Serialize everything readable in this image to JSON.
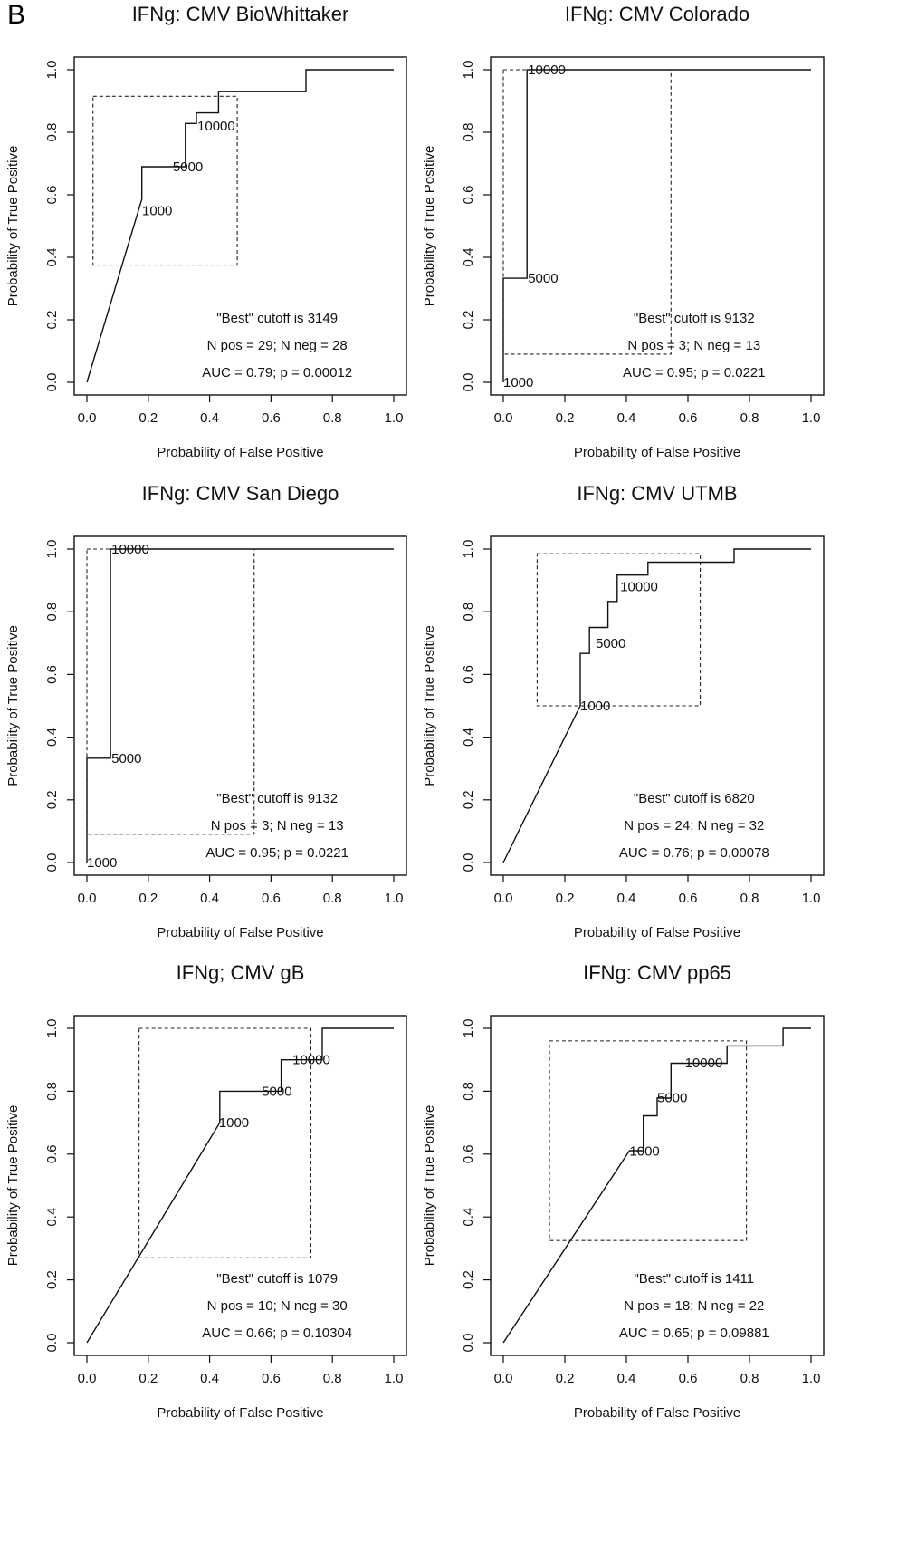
{
  "panel_label": "B",
  "chart_data": [
    {
      "type": "line",
      "title": "IFNg: CMV BioWhittaker",
      "xlabel": "Probability of False Positive",
      "ylabel": "Probability of True Positive",
      "xlim": [
        0,
        1
      ],
      "ylim": [
        0,
        1
      ],
      "xticks": [
        "0.0",
        "0.2",
        "0.4",
        "0.6",
        "0.8",
        "1.0"
      ],
      "yticks": [
        "0.0",
        "0.2",
        "0.4",
        "0.6",
        "0.8",
        "1.0"
      ],
      "roc": {
        "x": [
          0,
          0.179,
          0.179,
          0.321,
          0.321,
          0.357,
          0.357,
          0.429,
          0.429,
          0.714,
          0.714,
          1.0
        ],
        "y": [
          0,
          0.586,
          0.69,
          0.69,
          0.828,
          0.828,
          0.862,
          0.862,
          0.931,
          0.931,
          1.0,
          1.0
        ]
      },
      "best_box": {
        "x": [
          0.02,
          0.49
        ],
        "y": [
          0.375,
          0.915
        ]
      },
      "cutoff_labels": [
        {
          "text": "1000",
          "x": 0.18,
          "y": 0.55
        },
        {
          "text": "5000",
          "x": 0.28,
          "y": 0.69
        },
        {
          "text": "10000",
          "x": 0.36,
          "y": 0.82
        }
      ],
      "annotations": [
        "\"Best\" cutoff is 3149",
        "N pos = 29; N neg = 28",
        "AUC = 0.79; p = 0.00012"
      ]
    },
    {
      "type": "line",
      "title": "IFNg: CMV Colorado",
      "xlabel": "Probability of False Positive",
      "ylabel": "Probability of True Positive",
      "xlim": [
        0,
        1
      ],
      "ylim": [
        0,
        1
      ],
      "xticks": [
        "0.0",
        "0.2",
        "0.4",
        "0.6",
        "0.8",
        "1.0"
      ],
      "yticks": [
        "0.0",
        "0.2",
        "0.4",
        "0.6",
        "0.8",
        "1.0"
      ],
      "roc": {
        "x": [
          0,
          0,
          0.077,
          0.077,
          1.0
        ],
        "y": [
          0,
          0.333,
          0.333,
          1.0,
          1.0
        ]
      },
      "best_box": {
        "x": [
          0.0,
          0.545
        ],
        "y": [
          0.09,
          1.0
        ]
      },
      "cutoff_labels": [
        {
          "text": "1000",
          "x": 0.0,
          "y": 0.0
        },
        {
          "text": "5000",
          "x": 0.08,
          "y": 0.333
        },
        {
          "text": "10000",
          "x": 0.08,
          "y": 1.0
        }
      ],
      "annotations": [
        "\"Best\" cutoff is 9132",
        "N pos = 3; N neg = 13",
        "AUC = 0.95; p = 0.0221"
      ]
    },
    {
      "type": "line",
      "title": "IFNg: CMV San Diego",
      "xlabel": "Probability of False Positive",
      "ylabel": "Probability of True Positive",
      "xlim": [
        0,
        1
      ],
      "ylim": [
        0,
        1
      ],
      "xticks": [
        "0.0",
        "0.2",
        "0.4",
        "0.6",
        "0.8",
        "1.0"
      ],
      "yticks": [
        "0.0",
        "0.2",
        "0.4",
        "0.6",
        "0.8",
        "1.0"
      ],
      "roc": {
        "x": [
          0,
          0,
          0.077,
          0.077,
          1.0
        ],
        "y": [
          0,
          0.333,
          0.333,
          1.0,
          1.0
        ]
      },
      "best_box": {
        "x": [
          0.0,
          0.545
        ],
        "y": [
          0.09,
          1.0
        ]
      },
      "cutoff_labels": [
        {
          "text": "1000",
          "x": 0.0,
          "y": 0.0
        },
        {
          "text": "5000",
          "x": 0.08,
          "y": 0.333
        },
        {
          "text": "10000",
          "x": 0.08,
          "y": 1.0
        }
      ],
      "annotations": [
        "\"Best\" cutoff is 9132",
        "N pos = 3; N neg = 13",
        "AUC = 0.95; p = 0.0221"
      ]
    },
    {
      "type": "line",
      "title": "IFNg: CMV UTMB",
      "xlabel": "Probability of False Positive",
      "ylabel": "Probability of True Positive",
      "xlim": [
        0,
        1
      ],
      "ylim": [
        0,
        1
      ],
      "xticks": [
        "0.0",
        "0.2",
        "0.4",
        "0.6",
        "0.8",
        "1.0"
      ],
      "yticks": [
        "0.0",
        "0.2",
        "0.4",
        "0.6",
        "0.8",
        "1.0"
      ],
      "roc": {
        "x": [
          0,
          0.25,
          0.25,
          0.28,
          0.28,
          0.34,
          0.34,
          0.37,
          0.37,
          0.47,
          0.47,
          0.75,
          0.75,
          1.0
        ],
        "y": [
          0,
          0.5,
          0.667,
          0.667,
          0.75,
          0.75,
          0.833,
          0.833,
          0.917,
          0.917,
          0.958,
          0.958,
          1.0,
          1.0
        ]
      },
      "best_box": {
        "x": [
          0.11,
          0.64
        ],
        "y": [
          0.5,
          0.985
        ]
      },
      "cutoff_labels": [
        {
          "text": "1000",
          "x": 0.25,
          "y": 0.5
        },
        {
          "text": "5000",
          "x": 0.3,
          "y": 0.7
        },
        {
          "text": "10000",
          "x": 0.38,
          "y": 0.88
        }
      ],
      "annotations": [
        "\"Best\" cutoff is 6820",
        "N pos = 24; N neg = 32",
        "AUC = 0.76; p = 0.00078"
      ]
    },
    {
      "type": "line",
      "title": "IFNg; CMV gB",
      "xlabel": "Probability of False Positive",
      "ylabel": "Probability of True Positive",
      "xlim": [
        0,
        1
      ],
      "ylim": [
        0,
        1
      ],
      "xticks": [
        "0.0",
        "0.2",
        "0.4",
        "0.6",
        "0.8",
        "1.0"
      ],
      "yticks": [
        "0.0",
        "0.2",
        "0.4",
        "0.6",
        "0.8",
        "1.0"
      ],
      "roc": {
        "x": [
          0,
          0.433,
          0.433,
          0.633,
          0.633,
          0.767,
          0.767,
          1.0
        ],
        "y": [
          0,
          0.7,
          0.8,
          0.8,
          0.9,
          0.9,
          1.0,
          1.0
        ]
      },
      "best_box": {
        "x": [
          0.17,
          0.73
        ],
        "y": [
          0.27,
          1.0
        ]
      },
      "cutoff_labels": [
        {
          "text": "1000",
          "x": 0.43,
          "y": 0.7
        },
        {
          "text": "5000",
          "x": 0.57,
          "y": 0.8
        },
        {
          "text": "10000",
          "x": 0.67,
          "y": 0.9
        }
      ],
      "annotations": [
        "\"Best\" cutoff is 1079",
        "N pos = 10; N neg = 30",
        "AUC = 0.66; p = 0.10304"
      ]
    },
    {
      "type": "line",
      "title": "IFNg: CMV pp65",
      "xlabel": "Probability of False Positive",
      "ylabel": "Probability of True Positive",
      "xlim": [
        0,
        1
      ],
      "ylim": [
        0,
        1
      ],
      "xticks": [
        "0.0",
        "0.2",
        "0.4",
        "0.6",
        "0.8",
        "1.0"
      ],
      "yticks": [
        "0.0",
        "0.2",
        "0.4",
        "0.6",
        "0.8",
        "1.0"
      ],
      "roc": {
        "x": [
          0,
          0.41,
          0.41,
          0.455,
          0.455,
          0.5,
          0.5,
          0.545,
          0.545,
          0.727,
          0.727,
          0.909,
          0.909,
          1.0
        ],
        "y": [
          0,
          0.611,
          0.611,
          0.611,
          0.722,
          0.722,
          0.778,
          0.778,
          0.889,
          0.889,
          0.944,
          0.944,
          1.0,
          1.0
        ]
      },
      "best_box": {
        "x": [
          0.15,
          0.79
        ],
        "y": [
          0.325,
          0.96
        ]
      },
      "cutoff_labels": [
        {
          "text": "1000",
          "x": 0.41,
          "y": 0.61
        },
        {
          "text": "5000",
          "x": 0.5,
          "y": 0.78
        },
        {
          "text": "10000",
          "x": 0.59,
          "y": 0.89
        }
      ],
      "annotations": [
        "\"Best\" cutoff is 1411",
        "N pos = 18; N neg = 22",
        "AUC = 0.65; p = 0.09881"
      ]
    }
  ]
}
